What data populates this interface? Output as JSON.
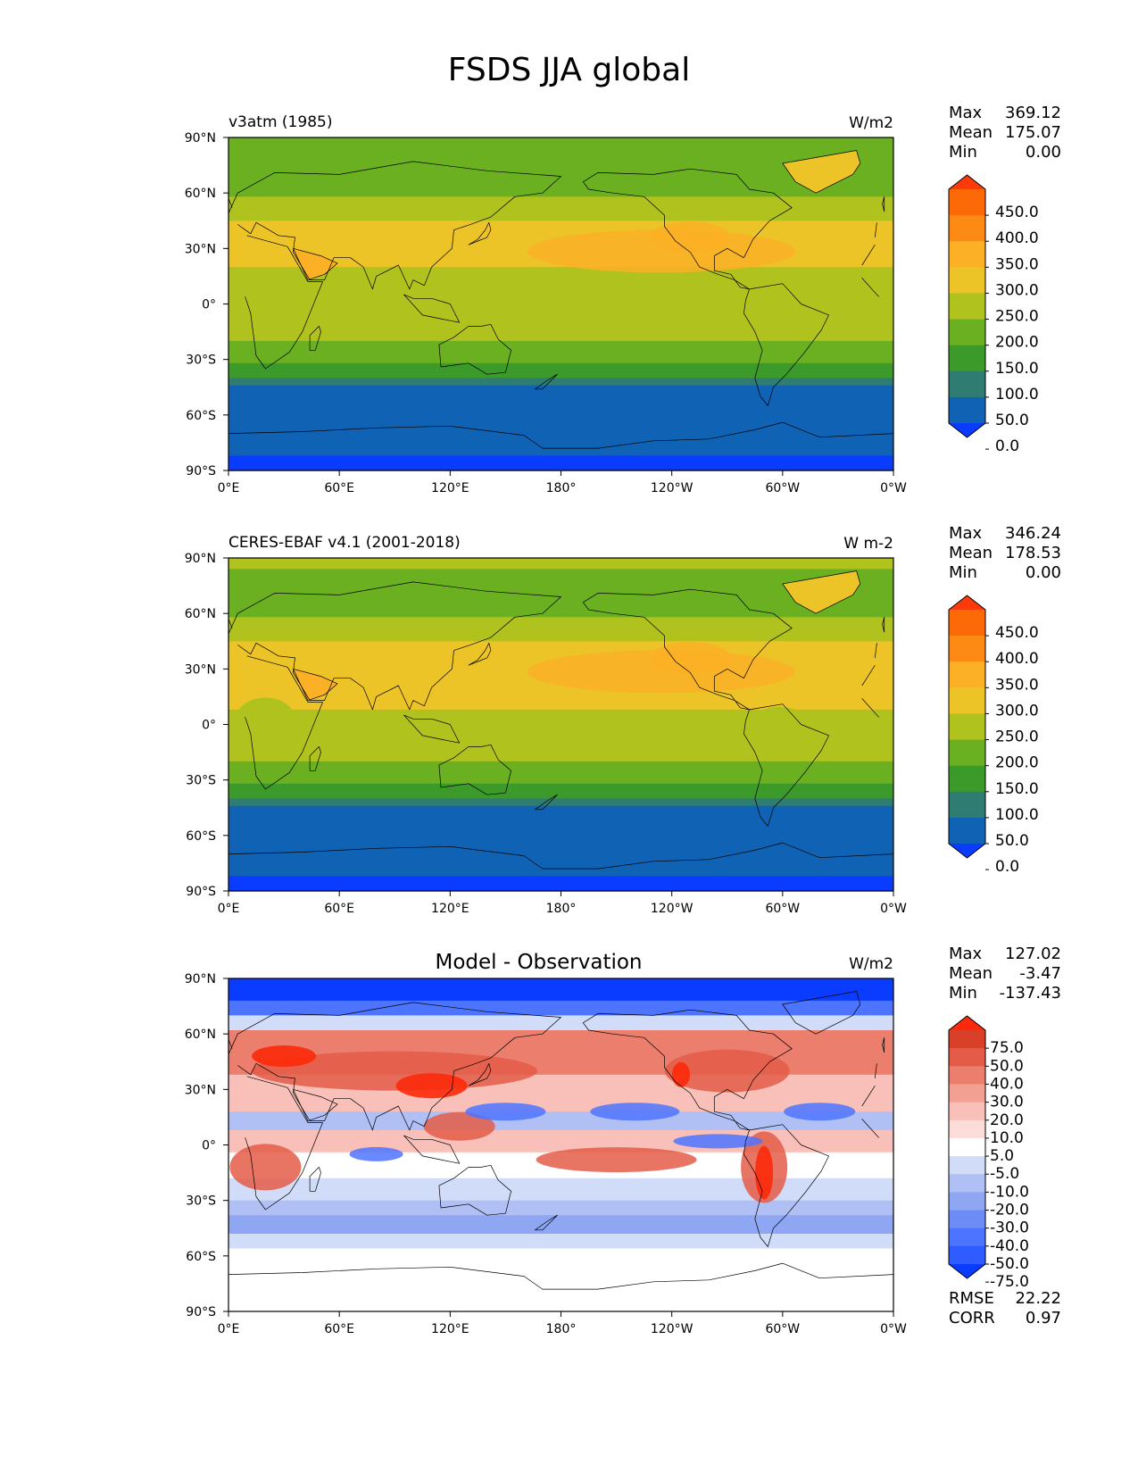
{
  "figure_title": "FSDS JJA global",
  "colors": {
    "abs_levels": [
      "#0a3cff",
      "#0f62b4",
      "#2f7d72",
      "#3c9a2b",
      "#6ab020",
      "#b0c21e",
      "#ecc428",
      "#fcb026",
      "#fc8a14",
      "#fc6a08",
      "#fc3a0a"
    ],
    "diff_levels": [
      "#0a3cff",
      "#2e5cff",
      "#4d74ff",
      "#6e8cf5",
      "#8fa6f3",
      "#b0c0f5",
      "#d0dcf8",
      "#ffffff",
      "#fcdcd8",
      "#f8c0b8",
      "#f2a092",
      "#ec7e6e",
      "#e45c48",
      "#d8402a",
      "#fc2a0a"
    ],
    "ocean_far_south": "#0a3cff",
    "ocean_south": "#0f62b4",
    "coast": "#000000"
  },
  "chart_data": [
    {
      "type": "heatmap",
      "title": "",
      "left_label": "v3atm (1985)",
      "units": "W/m2",
      "stats": [
        {
          "label": "Max",
          "value": "369.12"
        },
        {
          "label": "Mean",
          "value": "175.07"
        },
        {
          "label": "Min",
          "value": "0.00"
        }
      ],
      "xticks": [
        "0°E",
        "60°E",
        "120°E",
        "180°",
        "120°W",
        "60°W",
        "0°W"
      ],
      "yticks": [
        "90°N",
        "60°N",
        "30°N",
        "0°",
        "30°S",
        "60°S",
        "90°S"
      ],
      "colorbar_ticks": [
        "450.0",
        "400.0",
        "350.0",
        "300.0",
        "250.0",
        "200.0",
        "150.0",
        "100.0",
        "50.0",
        "0.0"
      ],
      "colorbar_levels": [
        0,
        50,
        100,
        150,
        200,
        250,
        300,
        350,
        400,
        450
      ],
      "variant": "model"
    },
    {
      "type": "heatmap",
      "title": "",
      "left_label": "CERES-EBAF v4.1 (2001-2018)",
      "units": "W m-2",
      "stats": [
        {
          "label": "Max",
          "value": "346.24"
        },
        {
          "label": "Mean",
          "value": "178.53"
        },
        {
          "label": "Min",
          "value": "0.00"
        }
      ],
      "xticks": [
        "0°E",
        "60°E",
        "120°E",
        "180°",
        "120°W",
        "60°W",
        "0°W"
      ],
      "yticks": [
        "90°N",
        "60°N",
        "30°N",
        "0°",
        "30°S",
        "60°S",
        "90°S"
      ],
      "colorbar_ticks": [
        "450.0",
        "400.0",
        "350.0",
        "300.0",
        "250.0",
        "200.0",
        "150.0",
        "100.0",
        "50.0",
        "0.0"
      ],
      "colorbar_levels": [
        0,
        50,
        100,
        150,
        200,
        250,
        300,
        350,
        400,
        450
      ],
      "variant": "obs"
    },
    {
      "type": "heatmap",
      "title": "Model - Observation",
      "left_label": "",
      "units": "W/m2",
      "stats": [
        {
          "label": "Max",
          "value": "127.02"
        },
        {
          "label": "Mean",
          "value": "-3.47"
        },
        {
          "label": "Min",
          "value": "-137.43"
        }
      ],
      "xticks": [
        "0°E",
        "60°E",
        "120°E",
        "180°",
        "120°W",
        "60°W",
        "0°W"
      ],
      "yticks": [
        "90°N",
        "60°N",
        "30°N",
        "0°",
        "30°S",
        "60°S",
        "90°S"
      ],
      "colorbar_ticks": [
        "75.0",
        "50.0",
        "40.0",
        "30.0",
        "20.0",
        "10.0",
        "5.0",
        "-5.0",
        "-10.0",
        "-20.0",
        "-30.0",
        "-40.0",
        "-50.0",
        "-75.0"
      ],
      "colorbar_levels": [
        -75,
        -50,
        -40,
        -30,
        -20,
        -10,
        -5,
        5,
        10,
        20,
        30,
        40,
        50,
        75
      ],
      "extra_stats": [
        {
          "label": "RMSE",
          "value": "22.22"
        },
        {
          "label": "CORR",
          "value": "0.97"
        }
      ],
      "variant": "diff"
    }
  ]
}
